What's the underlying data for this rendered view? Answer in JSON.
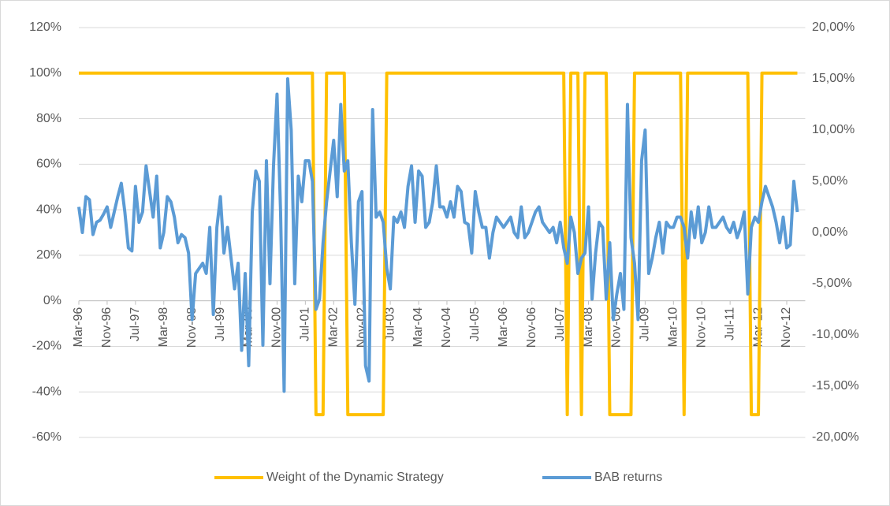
{
  "chart_data": {
    "type": "line",
    "categories": [
      "Mar-96",
      null,
      null,
      null,
      null,
      null,
      null,
      null,
      "Nov-96",
      null,
      null,
      null,
      null,
      null,
      null,
      null,
      "Jul-97",
      null,
      null,
      null,
      null,
      null,
      null,
      null,
      "Mar-98",
      null,
      null,
      null,
      null,
      null,
      null,
      null,
      "Nov-98",
      null,
      null,
      null,
      null,
      null,
      null,
      null,
      "Jul-99",
      null,
      null,
      null,
      null,
      null,
      null,
      null,
      "Mar-00",
      null,
      null,
      null,
      null,
      null,
      null,
      null,
      "Nov-00",
      null,
      null,
      null,
      null,
      null,
      null,
      null,
      "Jul-01",
      null,
      null,
      null,
      null,
      null,
      null,
      null,
      "Mar-02",
      null,
      null,
      null,
      null,
      null,
      null,
      null,
      "Nov-02",
      null,
      null,
      null,
      null,
      null,
      null,
      null,
      "Jul-03",
      null,
      null,
      null,
      null,
      null,
      null,
      null,
      "Mar-04",
      null,
      null,
      null,
      null,
      null,
      null,
      null,
      "Nov-04",
      null,
      null,
      null,
      null,
      null,
      null,
      null,
      "Jul-05",
      null,
      null,
      null,
      null,
      null,
      null,
      null,
      "Mar-06",
      null,
      null,
      null,
      null,
      null,
      null,
      null,
      "Nov-06",
      null,
      null,
      null,
      null,
      null,
      null,
      null,
      "Jul-07",
      null,
      null,
      null,
      null,
      null,
      null,
      null,
      "Mar-08",
      null,
      null,
      null,
      null,
      null,
      null,
      null,
      "Nov-08",
      null,
      null,
      null,
      null,
      null,
      null,
      null,
      "Jul-09",
      null,
      null,
      null,
      null,
      null,
      null,
      null,
      "Mar-10",
      null,
      null,
      null,
      null,
      null,
      null,
      null,
      "Nov-10",
      null,
      null,
      null,
      null,
      null,
      null,
      null,
      "Jul-11",
      null,
      null,
      null,
      null,
      null,
      null,
      null,
      "Mar-12",
      null,
      null,
      null,
      null,
      null,
      null,
      null,
      "Nov-12",
      null,
      null,
      null
    ],
    "series": [
      {
        "name": "Weight of the Dynamic Strategy",
        "color": "#FFC000",
        "axis": "y",
        "values": [
          100,
          100,
          100,
          100,
          100,
          100,
          100,
          100,
          100,
          100,
          100,
          100,
          100,
          100,
          100,
          100,
          100,
          100,
          100,
          100,
          100,
          100,
          100,
          100,
          100,
          100,
          100,
          100,
          100,
          100,
          100,
          100,
          100,
          100,
          100,
          100,
          100,
          100,
          100,
          100,
          100,
          100,
          100,
          100,
          100,
          100,
          100,
          100,
          100,
          100,
          100,
          100,
          100,
          100,
          100,
          100,
          100,
          100,
          100,
          100,
          100,
          100,
          100,
          100,
          100,
          100,
          100,
          -50,
          -50,
          -50,
          100,
          100,
          100,
          100,
          100,
          100,
          -50,
          -50,
          -50,
          -50,
          -50,
          -50,
          -50,
          -50,
          -50,
          -50,
          -50,
          100,
          100,
          100,
          100,
          100,
          100,
          100,
          100,
          100,
          100,
          100,
          100,
          100,
          100,
          100,
          100,
          100,
          100,
          100,
          100,
          100,
          100,
          100,
          100,
          100,
          100,
          100,
          100,
          100,
          100,
          100,
          100,
          100,
          100,
          100,
          100,
          100,
          100,
          100,
          100,
          100,
          100,
          100,
          100,
          100,
          100,
          100,
          100,
          100,
          100,
          100,
          -50,
          100,
          100,
          100,
          -50,
          100,
          100,
          100,
          100,
          100,
          100,
          100,
          -50,
          -50,
          -50,
          -50,
          -50,
          -50,
          -50,
          100,
          100,
          100,
          100,
          100,
          100,
          100,
          100,
          100,
          100,
          100,
          100,
          100,
          100,
          -50,
          100,
          100,
          100,
          100,
          100,
          100,
          100,
          100,
          100,
          100,
          100,
          100,
          100,
          100,
          100,
          100,
          100,
          100,
          -50,
          -50,
          -50,
          100,
          100,
          100,
          100,
          100,
          100,
          100,
          100,
          100,
          100,
          100
        ]
      },
      {
        "name": "BAB returns",
        "color": "#5B9BD5",
        "axis": "y2",
        "values": [
          2.5,
          0.0,
          3.5,
          3.2,
          -0.2,
          1.0,
          1.2,
          1.8,
          2.5,
          0.5,
          2.0,
          3.5,
          4.8,
          2.0,
          -1.5,
          -1.8,
          4.5,
          1.0,
          2.0,
          6.5,
          4.0,
          1.5,
          5.5,
          -1.5,
          0.0,
          3.5,
          3.0,
          1.5,
          -1.0,
          -0.2,
          -0.5,
          -2.0,
          -8.5,
          -4.0,
          -3.5,
          -3.0,
          -4.0,
          0.5,
          -8.0,
          0.5,
          3.5,
          -2.0,
          0.5,
          -2.5,
          -5.5,
          -3.0,
          -11.5,
          -4.0,
          -13.0,
          2.0,
          6.0,
          5.0,
          -11.0,
          7.0,
          -5.0,
          6.5,
          13.5,
          2.0,
          -15.5,
          15.0,
          10.0,
          -5.0,
          5.5,
          3.0,
          7.0,
          7.0,
          5.0,
          -7.5,
          -6.5,
          -1.0,
          3.0,
          6.0,
          9.0,
          3.5,
          12.5,
          6.0,
          7.0,
          -1.0,
          -7.0,
          3.0,
          4.0,
          -13.0,
          -14.5,
          12.0,
          1.5,
          2.0,
          1.0,
          -3.5,
          -5.5,
          1.5,
          1.0,
          2.0,
          0.5,
          4.5,
          6.5,
          1.0,
          6.0,
          5.5,
          0.5,
          1.0,
          3.0,
          6.5,
          2.5,
          2.5,
          1.5,
          3.0,
          1.5,
          4.5,
          4.0,
          1.0,
          0.8,
          -2.0,
          4.0,
          2.0,
          0.5,
          0.5,
          -2.5,
          0.0,
          1.5,
          1.0,
          0.5,
          1.0,
          1.5,
          0.0,
          -0.5,
          2.5,
          -0.5,
          0.0,
          1.0,
          2.0,
          2.5,
          1.0,
          0.5,
          0.0,
          0.5,
          -1.0,
          1.0,
          -1.5,
          -3.0,
          1.5,
          0.0,
          -4.0,
          -2.5,
          -2.0,
          2.5,
          -6.5,
          -2.0,
          1.0,
          0.5,
          -6.5,
          -1.0,
          -8.5,
          -6.0,
          -4.0,
          -7.5,
          12.5,
          -0.5,
          -3.0,
          -8.5,
          7.0,
          10.0,
          -4.0,
          -2.5,
          -0.5,
          1.0,
          -2.0,
          1.0,
          0.5,
          0.5,
          1.5,
          1.5,
          0.5,
          -2.5,
          2.0,
          -0.5,
          2.5,
          -1.0,
          0.0,
          2.5,
          0.5,
          0.5,
          1.0,
          1.5,
          0.5,
          0.0,
          1.0,
          -0.5,
          0.5,
          2.0,
          -6.0,
          0.5,
          1.5,
          1.0,
          3.0,
          4.5,
          3.5,
          2.5,
          1.0,
          -1.0,
          1.5,
          -1.5,
          -1.2,
          5.0,
          2.0
        ]
      }
    ],
    "ylim": [
      -60,
      120
    ],
    "yticks": [
      {
        "value": -60,
        "label": "-60%"
      },
      {
        "value": -40,
        "label": "-40%"
      },
      {
        "value": -20,
        "label": "-20%"
      },
      {
        "value": 0,
        "label": "0%"
      },
      {
        "value": 20,
        "label": "20%"
      },
      {
        "value": 40,
        "label": "40%"
      },
      {
        "value": 60,
        "label": "60%"
      },
      {
        "value": 80,
        "label": "80%"
      },
      {
        "value": 100,
        "label": "100%"
      },
      {
        "value": 120,
        "label": "120%"
      }
    ],
    "y2lim": [
      -20,
      20
    ],
    "y2ticks": [
      {
        "value": -20,
        "label": "-20,00%"
      },
      {
        "value": -15,
        "label": "-15,00%"
      },
      {
        "value": -10,
        "label": "-10,00%"
      },
      {
        "value": -5,
        "label": "-5,00%"
      },
      {
        "value": 0,
        "label": "0,00%"
      },
      {
        "value": 5,
        "label": "5,00%"
      },
      {
        "value": 10,
        "label": "10,00%"
      },
      {
        "value": 15,
        "label": "15,00%"
      },
      {
        "value": 20,
        "label": "20,00%"
      }
    ],
    "grid": true,
    "legend": "bottom"
  }
}
